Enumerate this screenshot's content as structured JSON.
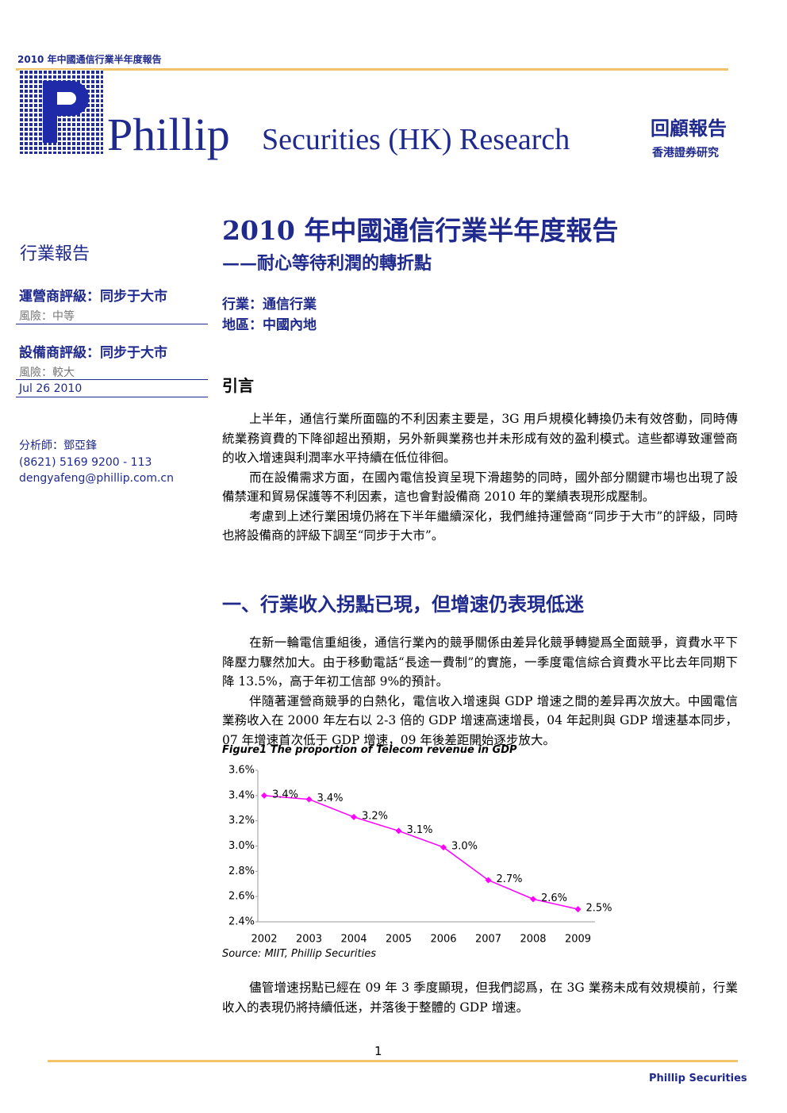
{
  "header": {
    "running_title": "2010 年中國通信行業半年度報告",
    "brand": "Phillip",
    "brand_sub": "Securities (HK) Research",
    "report_type": "回顧報告",
    "report_type_sub": "香港證券研究"
  },
  "sidebar": {
    "section": "行業報告",
    "ratings": [
      {
        "label": "運營商評級：同步于大市",
        "risk": "風險：中等"
      },
      {
        "label": "設備商評級：同步于大市",
        "risk": "風險：較大"
      }
    ],
    "date": "Jul 26 2010",
    "analyst": "分析師：鄧亞鋒",
    "phone": "(8621) 5169 9200 - 113",
    "email": "dengyafeng@phillip.com.cn"
  },
  "main": {
    "title": "2010 年中國通信行業半年度報告",
    "subtitle": "——耐心等待利潤的轉折點",
    "industry": "行業：通信行業",
    "region": "地區：中國內地",
    "intro_heading": "引言",
    "intro_paragraphs": [
      "上半年，通信行業所面臨的不利因素主要是，3G 用戶規模化轉換仍未有效啓動，同時傳統業務資費的下降卻超出預期，另外新興業務也并未形成有效的盈利模式。這些都導致運營商的收入增速與利潤率水平持續在低位徘徊。",
      "而在設備需求方面，在國內電信投資呈現下滑趨勢的同時，國外部分關鍵市場也出現了設備禁運和貿易保護等不利因素，這也會對設備商 2010 年的業績表現形成壓制。",
      "考慮到上述行業困境仍將在下半年繼續深化，我們維持運營商“同步于大市”的評級，同時也將設備商的評級下調至“同步于大市”。"
    ],
    "section1_heading": "一、行業收入拐點已現，但增速仍表現低迷",
    "section1_paragraphs": [
      "在新一輪電信重組後，通信行業內的競爭關係由差异化競爭轉變爲全面競爭，資費水平下降壓力驟然加大。由于移動電話“長途一費制”的實施，一季度電信綜合資費水平比去年同期下降 13.5%，高于年初工信部 9%的預計。",
      "伴隨著運營商競爭的白熱化，電信收入增速與 GDP 增速之間的差异再次放大。中國電信業務收入在 2000 年左右以 2-3 倍的 GDP 增速高速增長，04 年起則與 GDP 增速基本同步，07 年增速首次低于 GDP 增速，09 年後差距開始逐步放大。"
    ],
    "after_paragraphs": [
      "儘管增速拐點已經在 09 年 3 季度顯現，但我們認爲，在 3G 業務未成有效規模前，行業收入的表現仍將持續低迷，并落後于整體的 GDP 增速。"
    ]
  },
  "footer": {
    "page": "1",
    "brand": "Phillip Securities"
  },
  "chart_data": {
    "type": "line",
    "title": "Figure1 The proportion of Telecom revenue in GDP",
    "source": "Source: MIIT, Phillip Securities",
    "categories": [
      "2002",
      "2003",
      "2004",
      "2005",
      "2006",
      "2007",
      "2008",
      "2009"
    ],
    "values": [
      3.4,
      3.37,
      3.23,
      3.12,
      2.99,
      2.73,
      2.58,
      2.5
    ],
    "value_labels": [
      "3.4%",
      "3.4%",
      "3.2%",
      "3.1%",
      "3.0%",
      "2.7%",
      "2.6%",
      "2.5%"
    ],
    "color": "#ff00ff",
    "ylim": [
      2.4,
      3.6
    ],
    "yticks": [
      {
        "value": 2.4,
        "label": "2.4%"
      },
      {
        "value": 2.6,
        "label": "2.6%"
      },
      {
        "value": 2.8,
        "label": "2.8%"
      },
      {
        "value": 3.0,
        "label": "3.0%"
      },
      {
        "value": 3.2,
        "label": "3.2%"
      },
      {
        "value": 3.4,
        "label": "3.4%"
      },
      {
        "value": 3.6,
        "label": "3.6%"
      }
    ],
    "grid": false
  }
}
